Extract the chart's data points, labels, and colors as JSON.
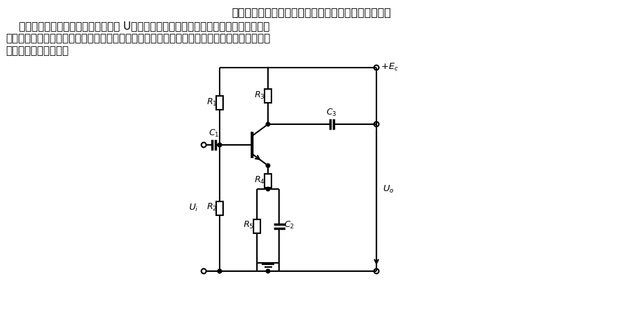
{
  "title_line1": "它具有输入阻抗高、放大倍数稳定、通频带宽等优点。",
  "text_line2": "    判断这类反馈电路的方法是；假想把 U。短接等于零，反馈依然存在，所以反馈信号取自",
  "text_line3": "输出电流，是电流反馈；假想把输入信号短接，反馈信号依然存在，所以是串联反馈。合起来，",
  "text_line4": "就是电流串联负反馈。",
  "bg_color": "#ffffff",
  "line_color": "#000000",
  "font_size_title": 11.5,
  "font_size_text": 11,
  "font_size_label": 9
}
